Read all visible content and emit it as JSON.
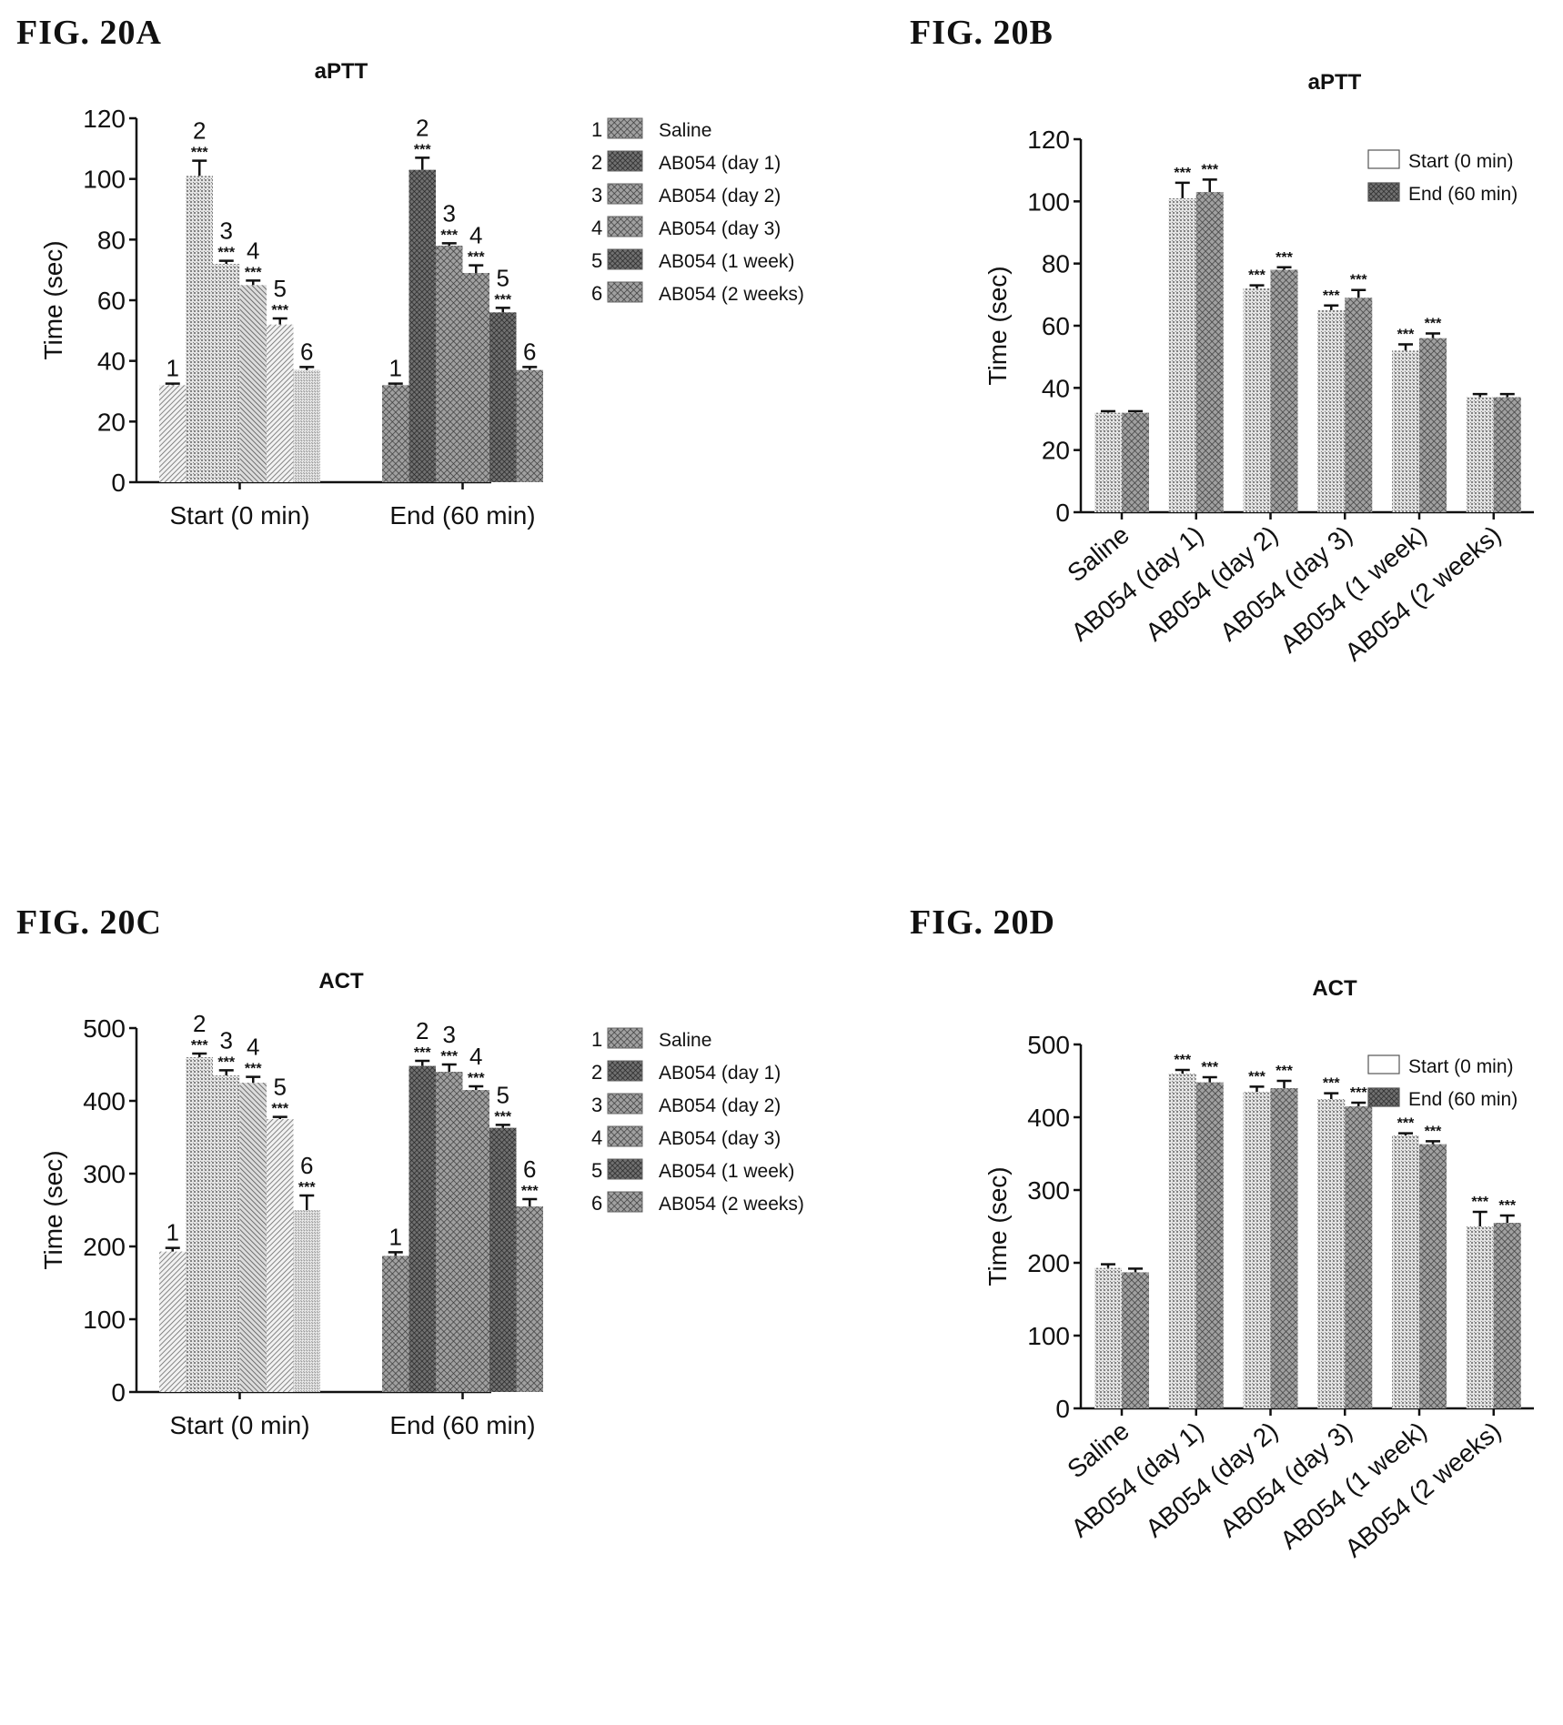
{
  "figure_labels": [
    "FIG. 20A",
    "FIG. 20B",
    "FIG. 20C",
    "FIG. 20D"
  ],
  "significance": "***",
  "chart_data": [
    {
      "type": "bar",
      "title": "aPTT",
      "ylabel": "Time (sec)",
      "ylim": [
        0,
        120
      ],
      "yticks": [
        0,
        20,
        40,
        60,
        80,
        100,
        120
      ],
      "grouping": "by-timepoint",
      "categories": [
        "Start (0 min)",
        "End (60 min)"
      ],
      "series": [
        {
          "name": "Saline",
          "number": "1",
          "values": [
            32,
            32
          ],
          "errors": [
            0.5,
            0.5
          ],
          "sig": [
            false,
            false
          ]
        },
        {
          "name": "AB054 (day 1)",
          "number": "2",
          "values": [
            101,
            103
          ],
          "errors": [
            5,
            4
          ],
          "sig": [
            true,
            true
          ]
        },
        {
          "name": "AB054 (day 2)",
          "number": "3",
          "values": [
            72,
            78
          ],
          "errors": [
            1,
            0.8
          ],
          "sig": [
            true,
            true
          ]
        },
        {
          "name": "AB054 (day 3)",
          "number": "4",
          "values": [
            65,
            69
          ],
          "errors": [
            1.5,
            2.5
          ],
          "sig": [
            true,
            true
          ]
        },
        {
          "name": "AB054 (1 week)",
          "number": "5",
          "values": [
            52,
            56
          ],
          "errors": [
            2,
            1.5
          ],
          "sig": [
            true,
            true
          ]
        },
        {
          "name": "AB054 (2 weeks)",
          "number": "6",
          "values": [
            37,
            37
          ],
          "errors": [
            1,
            1
          ],
          "sig": [
            false,
            false
          ]
        }
      ],
      "legend": "right"
    },
    {
      "type": "bar",
      "title": "aPTT",
      "ylabel": "Time (sec)",
      "ylim": [
        0,
        120
      ],
      "yticks": [
        0,
        20,
        40,
        60,
        80,
        100,
        120
      ],
      "grouping": "by-treatment",
      "categories": [
        "Saline",
        "AB054 (day 1)",
        "AB054 (day 2)",
        "AB054 (day 3)",
        "AB054 (1 week)",
        "AB054 (2 weeks)"
      ],
      "series": [
        {
          "name": "Start (0 min)",
          "values": [
            32,
            101,
            72,
            65,
            52,
            37
          ],
          "errors": [
            0.5,
            5,
            1,
            1.5,
            2,
            1
          ],
          "sig": [
            false,
            true,
            true,
            true,
            true,
            false
          ]
        },
        {
          "name": "End (60 min)",
          "values": [
            32,
            103,
            78,
            69,
            56,
            37
          ],
          "errors": [
            0.5,
            4,
            0.8,
            2.5,
            1.5,
            1
          ],
          "sig": [
            false,
            true,
            true,
            true,
            true,
            false
          ]
        }
      ],
      "legend": "top-right"
    },
    {
      "type": "bar",
      "title": "ACT",
      "ylabel": "Time (sec)",
      "ylim": [
        0,
        500
      ],
      "yticks": [
        0,
        100,
        200,
        300,
        400,
        500
      ],
      "grouping": "by-timepoint",
      "categories": [
        "Start (0 min)",
        "End (60 min)"
      ],
      "series": [
        {
          "name": "Saline",
          "number": "1",
          "values": [
            193,
            187
          ],
          "errors": [
            5,
            5
          ],
          "sig": [
            false,
            false
          ]
        },
        {
          "name": "AB054 (day 1)",
          "number": "2",
          "values": [
            460,
            448
          ],
          "errors": [
            5,
            7
          ],
          "sig": [
            true,
            true
          ]
        },
        {
          "name": "AB054 (day 2)",
          "number": "3",
          "values": [
            435,
            440
          ],
          "errors": [
            7,
            10
          ],
          "sig": [
            true,
            true
          ]
        },
        {
          "name": "AB054 (day 3)",
          "number": "4",
          "values": [
            425,
            415
          ],
          "errors": [
            8,
            5
          ],
          "sig": [
            true,
            true
          ]
        },
        {
          "name": "AB054 (1 week)",
          "number": "5",
          "values": [
            375,
            363
          ],
          "errors": [
            3,
            4
          ],
          "sig": [
            true,
            true
          ]
        },
        {
          "name": "AB054 (2 weeks)",
          "number": "6",
          "values": [
            250,
            255
          ],
          "errors": [
            20,
            10
          ],
          "sig": [
            true,
            true
          ]
        }
      ],
      "legend": "right"
    },
    {
      "type": "bar",
      "title": "ACT",
      "ylabel": "Time (sec)",
      "ylim": [
        0,
        500
      ],
      "yticks": [
        0,
        100,
        200,
        300,
        400,
        500
      ],
      "grouping": "by-treatment",
      "categories": [
        "Saline",
        "AB054 (day 1)",
        "AB054 (day 2)",
        "AB054 (day 3)",
        "AB054 (1 week)",
        "AB054 (2 weeks)"
      ],
      "series": [
        {
          "name": "Start (0 min)",
          "values": [
            193,
            460,
            435,
            425,
            375,
            250
          ],
          "errors": [
            5,
            5,
            7,
            8,
            3,
            20
          ],
          "sig": [
            false,
            true,
            true,
            true,
            true,
            true
          ]
        },
        {
          "name": "End (60 min)",
          "values": [
            187,
            448,
            440,
            415,
            363,
            255
          ],
          "errors": [
            5,
            7,
            10,
            5,
            4,
            10
          ],
          "sig": [
            false,
            true,
            true,
            true,
            true,
            true
          ]
        }
      ],
      "legend": "top-right"
    }
  ]
}
